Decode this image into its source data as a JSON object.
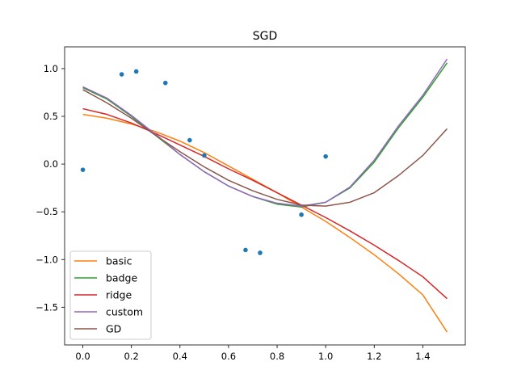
{
  "chart_data": {
    "type": "line",
    "title": "SGD",
    "xlabel": "",
    "ylabel": "",
    "xlim": [
      -0.075,
      1.575
    ],
    "ylim": [
      -1.895,
      1.228
    ],
    "xticks": [
      0.0,
      0.2,
      0.4,
      0.6,
      0.8,
      1.0,
      1.2,
      1.4
    ],
    "xtick_labels": [
      "0.0",
      "0.2",
      "0.4",
      "0.6",
      "0.8",
      "1.0",
      "1.2",
      "1.4"
    ],
    "yticks": [
      -1.5,
      -1.0,
      -0.5,
      0.0,
      0.5,
      1.0
    ],
    "ytick_labels": [
      "−1.5",
      "−1.0",
      "−0.5",
      "0.0",
      "0.5",
      "1.0"
    ],
    "grid": false,
    "legend_position": "lower-left",
    "scatter": {
      "color": "#1f77b4",
      "points": [
        [
          0.0,
          -0.06
        ],
        [
          0.16,
          0.94
        ],
        [
          0.22,
          0.97
        ],
        [
          0.34,
          0.85
        ],
        [
          0.44,
          0.25
        ],
        [
          0.5,
          0.09
        ],
        [
          0.67,
          -0.9
        ],
        [
          0.73,
          -0.93
        ],
        [
          0.9,
          -0.53
        ],
        [
          1.0,
          0.08
        ]
      ]
    },
    "series": [
      {
        "name": "basic",
        "color": "#ff7f0e",
        "x": [
          0.0,
          0.1,
          0.2,
          0.3,
          0.4,
          0.5,
          0.6,
          0.7,
          0.8,
          0.9,
          1.0,
          1.1,
          1.2,
          1.3,
          1.4,
          1.5
        ],
        "y": [
          0.52,
          0.48,
          0.42,
          0.34,
          0.24,
          0.12,
          -0.02,
          -0.16,
          -0.3,
          -0.45,
          -0.6,
          -0.77,
          -0.95,
          -1.15,
          -1.37,
          -1.76
        ]
      },
      {
        "name": "badge",
        "color": "#2ca02c",
        "x": [
          0.0,
          0.1,
          0.2,
          0.3,
          0.4,
          0.5,
          0.6,
          0.7,
          0.8,
          0.9,
          1.0,
          1.1,
          1.2,
          1.3,
          1.4,
          1.5
        ],
        "y": [
          0.8,
          0.68,
          0.5,
          0.3,
          0.1,
          -0.08,
          -0.23,
          -0.34,
          -0.42,
          -0.45,
          -0.4,
          -0.25,
          0.02,
          0.38,
          0.7,
          1.06
        ]
      },
      {
        "name": "ridge",
        "color": "#d62728",
        "x": [
          0.0,
          0.1,
          0.2,
          0.3,
          0.4,
          0.5,
          0.6,
          0.7,
          0.8,
          0.9,
          1.0,
          1.1,
          1.2,
          1.3,
          1.4,
          1.5
        ],
        "y": [
          0.58,
          0.52,
          0.43,
          0.32,
          0.2,
          0.08,
          -0.05,
          -0.17,
          -0.3,
          -0.43,
          -0.56,
          -0.7,
          -0.85,
          -1.01,
          -1.18,
          -1.41
        ]
      },
      {
        "name": "custom",
        "color": "#9467bd",
        "x": [
          0.0,
          0.1,
          0.2,
          0.3,
          0.4,
          0.5,
          0.6,
          0.7,
          0.8,
          0.9,
          1.0,
          1.1,
          1.2,
          1.3,
          1.4,
          1.5
        ],
        "y": [
          0.81,
          0.69,
          0.51,
          0.31,
          0.1,
          -0.08,
          -0.23,
          -0.34,
          -0.41,
          -0.44,
          -0.4,
          -0.24,
          0.04,
          0.4,
          0.72,
          1.1
        ]
      },
      {
        "name": "GD",
        "color": "#8c564b",
        "x": [
          0.0,
          0.1,
          0.2,
          0.3,
          0.4,
          0.5,
          0.6,
          0.7,
          0.8,
          0.9,
          1.0,
          1.1,
          1.2,
          1.3,
          1.4,
          1.5
        ],
        "y": [
          0.78,
          0.64,
          0.48,
          0.3,
          0.13,
          -0.03,
          -0.17,
          -0.28,
          -0.37,
          -0.43,
          -0.44,
          -0.4,
          -0.3,
          -0.12,
          0.09,
          0.37
        ]
      }
    ]
  }
}
